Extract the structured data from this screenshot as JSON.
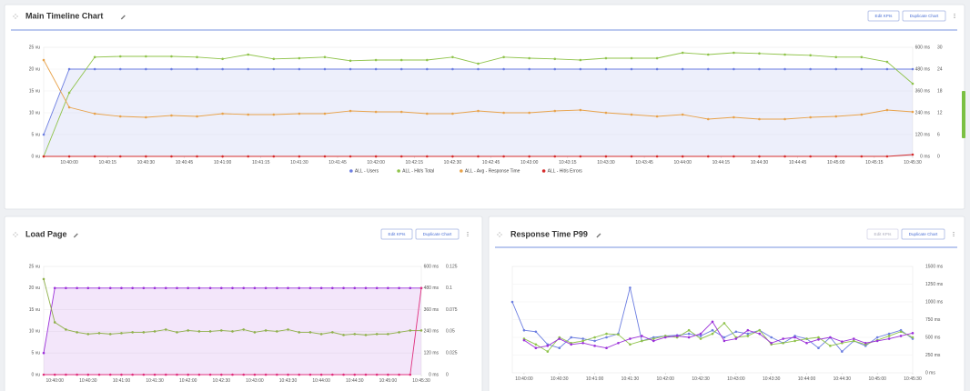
{
  "buttons": {
    "edit": "Edit KPIs",
    "duplicate": "Duplicate Chart"
  },
  "chart_data": [
    {
      "type": "line",
      "title": "Main Timeline Chart",
      "grid": true,
      "x": [
        "10:39:50",
        "10:40:00",
        "10:40:10",
        "10:40:20",
        "10:40:30",
        "10:40:40",
        "10:40:50",
        "10:41:00",
        "10:41:10",
        "10:41:20",
        "10:41:30",
        "10:41:40",
        "10:41:50",
        "10:42:00",
        "10:42:10",
        "10:42:20",
        "10:42:30",
        "10:42:40",
        "10:42:50",
        "10:43:00",
        "10:43:10",
        "10:43:20",
        "10:43:30",
        "10:43:40",
        "10:43:50",
        "10:44:00",
        "10:44:10",
        "10:44:20",
        "10:44:30",
        "10:44:40",
        "10:44:50",
        "10:45:00",
        "10:45:10",
        "10:45:20",
        "10:45:30"
      ],
      "xlim": [
        "10:39:50",
        "10:45:30"
      ],
      "xticks": [
        "10:40:00",
        "10:40:15",
        "10:40:30",
        "10:40:45",
        "10:41:00",
        "10:41:15",
        "10:41:30",
        "10:41:45",
        "10:42:00",
        "10:42:15",
        "10:42:30",
        "10:42:45",
        "10:43:00",
        "10:43:15",
        "10:43:30",
        "10:43:45",
        "10:44:00",
        "10:44:15",
        "10:44:30",
        "10:44:45",
        "10:45:00",
        "10:45:15",
        "10:45:30"
      ],
      "ylim": [
        0,
        25
      ],
      "yticks": [
        {
          "value": 0,
          "label": "0 vu"
        },
        {
          "value": 5,
          "label": "5 vu"
        },
        {
          "value": 10,
          "label": "10 vu"
        },
        {
          "value": 15,
          "label": "15 vu"
        },
        {
          "value": 20,
          "label": "20 vu"
        },
        {
          "value": 25,
          "label": "25 vu"
        }
      ],
      "y2lim": [
        0,
        600
      ],
      "y2ticks": [
        {
          "value": 0,
          "label": "0 ms"
        },
        {
          "value": 120,
          "label": "120 ms"
        },
        {
          "value": 240,
          "label": "240 ms"
        },
        {
          "value": 360,
          "label": "360 ms"
        },
        {
          "value": 480,
          "label": "480 ms"
        },
        {
          "value": 600,
          "label": "600 ms"
        }
      ],
      "y3lim": [
        0,
        30
      ],
      "y3ticks": [
        0,
        6,
        12,
        18,
        24,
        30
      ],
      "series": [
        {
          "name": "ALL - Users",
          "color": "#6c7ee1",
          "area": true,
          "axis": "y",
          "values": [
            5,
            20,
            20,
            20,
            20,
            20,
            20,
            20,
            20,
            20,
            20,
            20,
            20,
            20,
            20,
            20,
            20,
            20,
            20,
            20,
            20,
            20,
            20,
            20,
            20,
            20,
            20,
            20,
            20,
            20,
            20,
            20,
            20,
            20,
            20
          ]
        },
        {
          "name": "ALL - Hit/s Total",
          "color": "#8fc34a",
          "axis": "y3",
          "values": [
            0,
            17.5,
            27.3,
            27.5,
            27.5,
            27.5,
            27.3,
            26.8,
            28,
            26.8,
            27,
            27.3,
            26.3,
            26.5,
            26.5,
            26.5,
            27.3,
            25.5,
            27.3,
            27,
            26.8,
            26.5,
            27,
            27,
            27,
            28.5,
            28,
            28.5,
            28.3,
            28,
            27.8,
            27.3,
            27.3,
            26,
            20
          ]
        },
        {
          "name": "ALL - Avg - Response Time",
          "color": "#e8a24a",
          "axis": "y2",
          "values": [
            530,
            270,
            235,
            220,
            215,
            225,
            220,
            235,
            230,
            230,
            235,
            235,
            250,
            245,
            245,
            235,
            235,
            250,
            240,
            240,
            250,
            255,
            240,
            230,
            220,
            230,
            205,
            215,
            205,
            205,
            215,
            220,
            230,
            255,
            245
          ]
        },
        {
          "name": "ALL - Hit/s Errors",
          "color": "#d62c2c",
          "axis": "y3",
          "values": [
            0,
            0,
            0,
            0,
            0,
            0,
            0,
            0,
            0,
            0,
            0,
            0,
            0,
            0,
            0,
            0,
            0,
            0,
            0,
            0,
            0,
            0,
            0,
            0,
            0,
            0,
            0,
            0,
            0,
            0,
            0,
            0,
            0,
            0,
            0.5
          ]
        }
      ]
    },
    {
      "type": "line",
      "title": "Load Page",
      "grid": true,
      "x": [
        "10:39:50",
        "10:40:00",
        "10:40:10",
        "10:40:20",
        "10:40:30",
        "10:40:40",
        "10:40:50",
        "10:41:00",
        "10:41:10",
        "10:41:20",
        "10:41:30",
        "10:41:40",
        "10:41:50",
        "10:42:00",
        "10:42:10",
        "10:42:20",
        "10:42:30",
        "10:42:40",
        "10:42:50",
        "10:43:00",
        "10:43:10",
        "10:43:20",
        "10:43:30",
        "10:43:40",
        "10:43:50",
        "10:44:00",
        "10:44:10",
        "10:44:20",
        "10:44:30",
        "10:44:40",
        "10:44:50",
        "10:45:00",
        "10:45:10",
        "10:45:20",
        "10:45:30"
      ],
      "xlim": [
        "10:39:50",
        "10:45:30"
      ],
      "xticks": [
        "10:40:00",
        "10:40:30",
        "10:41:00",
        "10:41:30",
        "10:42:00",
        "10:42:30",
        "10:43:00",
        "10:43:30",
        "10:44:00",
        "10:44:30",
        "10:45:00",
        "10:45:30"
      ],
      "ylim": [
        0,
        25
      ],
      "yticks": [
        {
          "value": 0,
          "label": "0 vu"
        },
        {
          "value": 5,
          "label": "5 vu"
        },
        {
          "value": 10,
          "label": "10 vu"
        },
        {
          "value": 15,
          "label": "15 vu"
        },
        {
          "value": 20,
          "label": "20 vu"
        },
        {
          "value": 25,
          "label": "25 vu"
        }
      ],
      "y2lim": [
        0,
        600
      ],
      "y2ticks": [
        {
          "value": 0,
          "label": "0 ms"
        },
        {
          "value": 120,
          "label": "120 ms"
        },
        {
          "value": 240,
          "label": "240 ms"
        },
        {
          "value": 360,
          "label": "360 ms"
        },
        {
          "value": 480,
          "label": "480 ms"
        },
        {
          "value": 600,
          "label": "600 ms"
        }
      ],
      "y3lim": [
        0,
        0.125
      ],
      "y3ticks": [
        0,
        0.025,
        0.05,
        0.075,
        0.1,
        0.125
      ],
      "series": [
        {
          "color": "#9b30d9",
          "area": true,
          "axis": "y",
          "values": [
            5,
            20,
            20,
            20,
            20,
            20,
            20,
            20,
            20,
            20,
            20,
            20,
            20,
            20,
            20,
            20,
            20,
            20,
            20,
            20,
            20,
            20,
            20,
            20,
            20,
            20,
            20,
            20,
            20,
            20,
            20,
            20,
            20,
            20,
            20
          ]
        },
        {
          "color": "#8fb04a",
          "axis": "y2",
          "values": [
            530,
            290,
            250,
            235,
            225,
            230,
            225,
            230,
            235,
            235,
            240,
            250,
            235,
            245,
            240,
            240,
            245,
            240,
            250,
            235,
            245,
            240,
            250,
            235,
            235,
            225,
            235,
            220,
            225,
            220,
            225,
            225,
            235,
            245,
            245
          ]
        },
        {
          "color": "#e0307e",
          "axis": "y3",
          "values": [
            0,
            0,
            0,
            0,
            0,
            0,
            0,
            0,
            0,
            0,
            0,
            0,
            0,
            0,
            0,
            0,
            0,
            0,
            0,
            0,
            0,
            0,
            0,
            0,
            0,
            0,
            0,
            0,
            0,
            0,
            0,
            0,
            0,
            0,
            0.1
          ]
        }
      ]
    },
    {
      "type": "line",
      "title": "Response Time P99",
      "grid": true,
      "x": [
        "10:39:50",
        "10:40:00",
        "10:40:10",
        "10:40:20",
        "10:40:30",
        "10:40:40",
        "10:40:50",
        "10:41:00",
        "10:41:10",
        "10:41:20",
        "10:41:30",
        "10:41:40",
        "10:41:50",
        "10:42:00",
        "10:42:10",
        "10:42:20",
        "10:42:30",
        "10:42:40",
        "10:42:50",
        "10:43:00",
        "10:43:10",
        "10:43:20",
        "10:43:30",
        "10:43:40",
        "10:43:50",
        "10:44:00",
        "10:44:10",
        "10:44:20",
        "10:44:30",
        "10:44:40",
        "10:44:50",
        "10:45:00",
        "10:45:10",
        "10:45:20",
        "10:45:30"
      ],
      "xlim": [
        "10:39:50",
        "10:45:30"
      ],
      "xticks": [
        "10:40:00",
        "10:40:30",
        "10:41:00",
        "10:41:30",
        "10:42:00",
        "10:42:30",
        "10:43:00",
        "10:43:30",
        "10:44:00",
        "10:44:30",
        "10:45:00",
        "10:45:30"
      ],
      "ylim": [
        0,
        1500
      ],
      "yticks": [
        {
          "value": 0,
          "label": "0 ms"
        },
        {
          "value": 250,
          "label": "250 ms"
        },
        {
          "value": 500,
          "label": "500 ms"
        },
        {
          "value": 750,
          "label": "750 ms"
        },
        {
          "value": 1000,
          "label": "1000 ms"
        },
        {
          "value": 1250,
          "label": "1250 ms"
        },
        {
          "value": 1500,
          "label": "1500 ms"
        }
      ],
      "series": [
        {
          "color": "#6c7ee1",
          "axis": "y",
          "values": [
            1000,
            600,
            580,
            400,
            350,
            500,
            480,
            450,
            500,
            550,
            1200,
            450,
            500,
            520,
            530,
            550,
            520,
            600,
            500,
            580,
            550,
            600,
            500,
            420,
            520,
            480,
            350,
            500,
            300,
            450,
            380,
            500,
            550,
            600,
            480
          ]
        },
        {
          "color": "#8fc34a",
          "axis": "y",
          "values": [
            null,
            480,
            400,
            300,
            500,
            420,
            450,
            500,
            550,
            540,
            400,
            450,
            480,
            520,
            500,
            600,
            480,
            550,
            700,
            500,
            520,
            600,
            400,
            420,
            450,
            480,
            500,
            380,
            420,
            450,
            400,
            460,
            520,
            580,
            500
          ]
        },
        {
          "color": "#9b30d9",
          "axis": "y",
          "values": [
            null,
            460,
            350,
            380,
            480,
            400,
            420,
            380,
            350,
            420,
            480,
            520,
            450,
            500,
            520,
            500,
            550,
            720,
            450,
            480,
            600,
            550,
            420,
            480,
            500,
            420,
            470,
            500,
            440,
            480,
            420,
            450,
            480,
            520,
            560
          ]
        }
      ]
    }
  ]
}
